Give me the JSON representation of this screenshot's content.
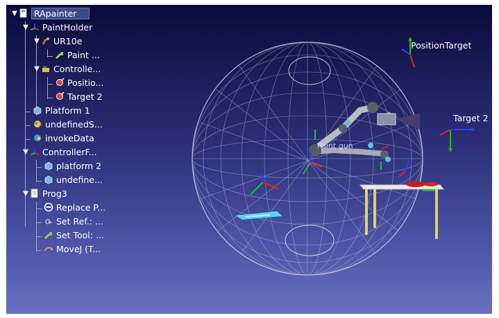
{
  "tree": {
    "items": [
      {
        "label": "RApainter",
        "icon": "station-icon",
        "selected": true
      },
      {
        "label": "PaintHolder",
        "icon": "frame-icon"
      },
      {
        "label": "UR10e",
        "icon": "robot-icon"
      },
      {
        "label": "Paint ...",
        "icon": "tool-icon"
      },
      {
        "label": "Controlle...",
        "icon": "controller-icon"
      },
      {
        "label": "Positio...",
        "icon": "target-icon"
      },
      {
        "label": "Target 2",
        "icon": "target-icon"
      },
      {
        "label": "Platform 1",
        "icon": "object-icon"
      },
      {
        "label": "undefinedS...",
        "icon": "object-icon"
      },
      {
        "label": "invokeData",
        "icon": "script-icon"
      },
      {
        "label": "ControllerF...",
        "icon": "frame-icon"
      },
      {
        "label": "platform 2",
        "icon": "object-icon"
      },
      {
        "label": "undefine...",
        "icon": "object-icon"
      },
      {
        "label": "Prog3",
        "icon": "program-icon"
      },
      {
        "label": "Replace P...",
        "icon": "instruction-icon"
      },
      {
        "label": "Set Ref.: ...",
        "icon": "instruction-icon"
      },
      {
        "label": "Set Tool: ...",
        "icon": "instruction-icon"
      },
      {
        "label": "MoveJ (T...",
        "icon": "move-icon"
      }
    ]
  },
  "viewport": {
    "labels": {
      "position_target": "PositionTarget",
      "target2": "Target 2",
      "paint_gun": "Paint gun"
    },
    "colors": {
      "bg_top": "#0a0a3a",
      "bg_bottom": "#6870bf",
      "axis_x": "#e02020",
      "axis_y": "#20c020",
      "axis_z": "#2040ff"
    }
  }
}
